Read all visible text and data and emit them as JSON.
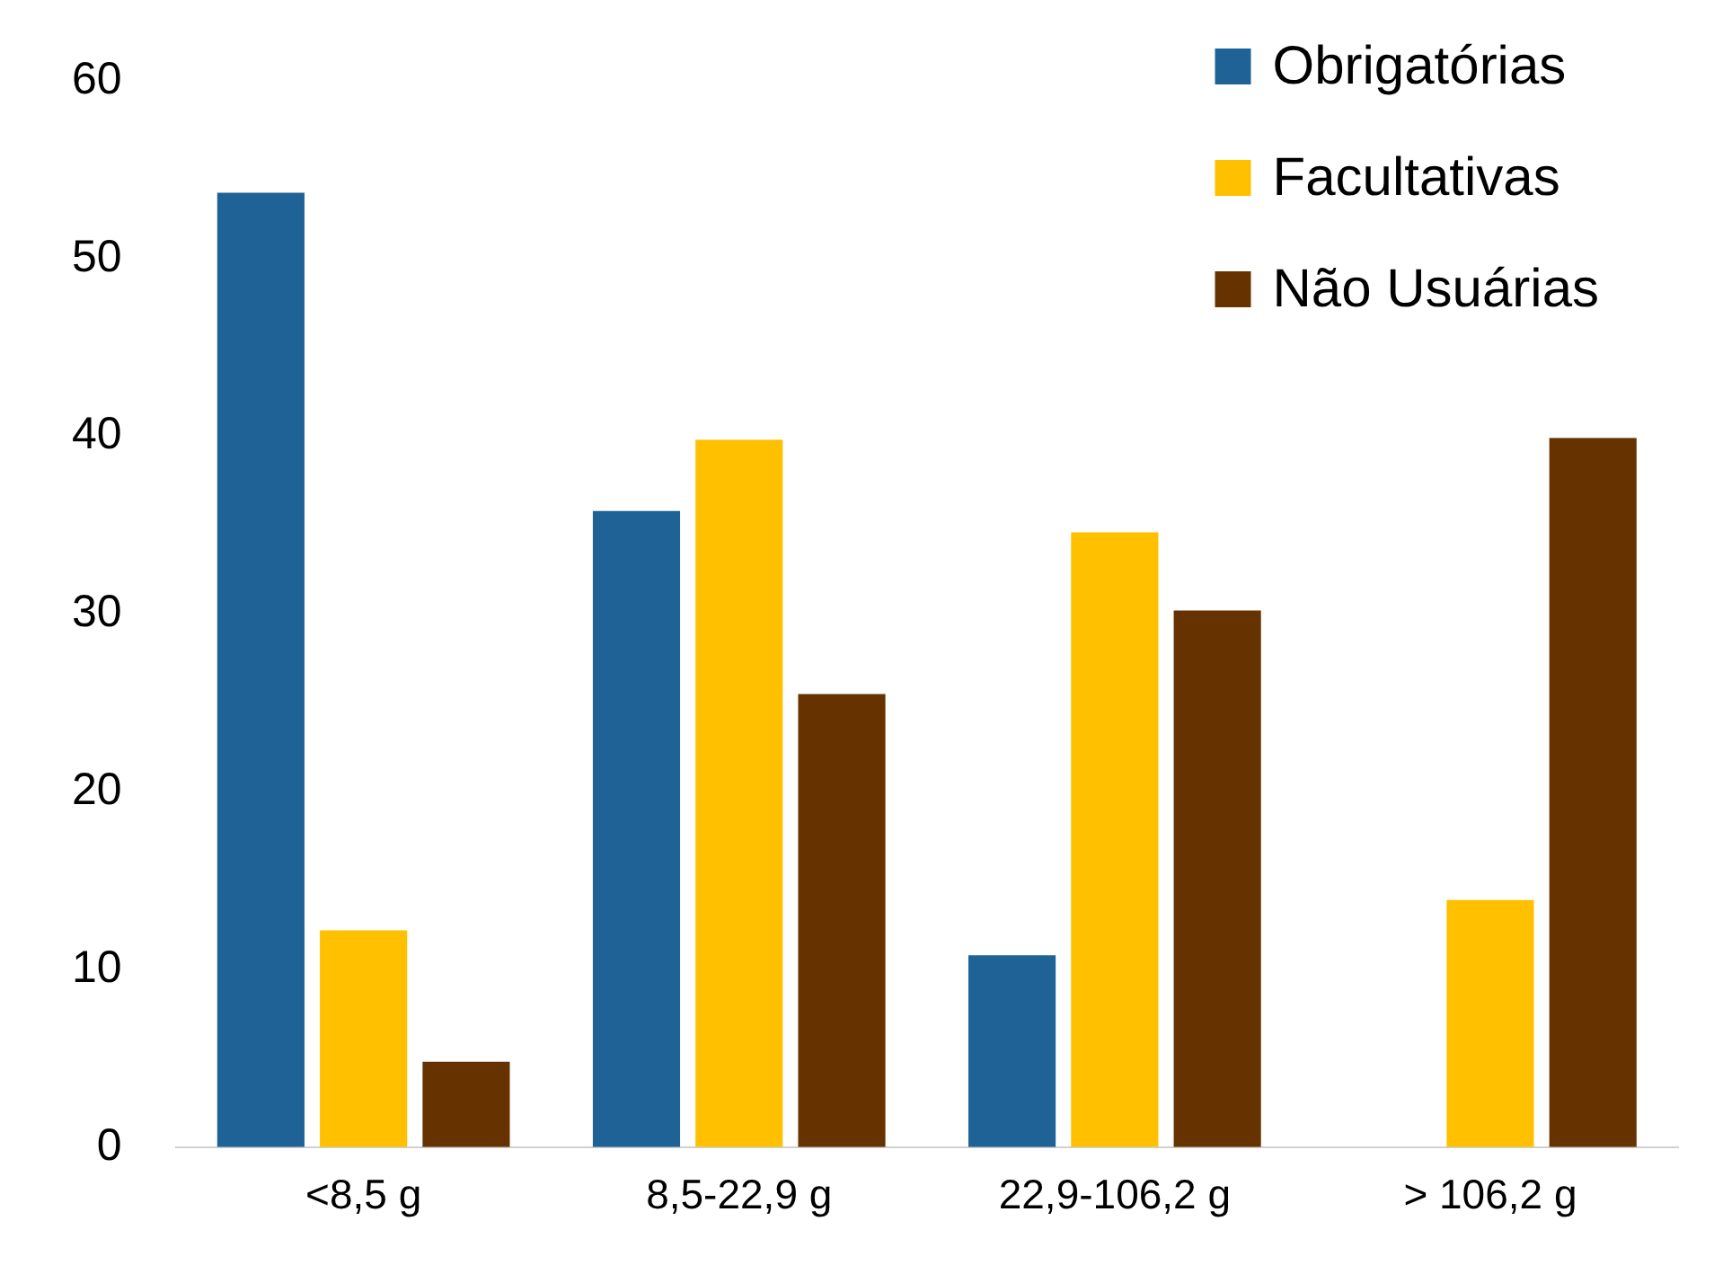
{
  "chart_data": {
    "type": "bar",
    "categories": [
      "<8,5 g",
      "8,5-22,9 g",
      "22,9-106,2 g",
      "> 106,2 g"
    ],
    "series": [
      {
        "name": "Obrigatórias",
        "color": "#1f6396",
        "values": [
          53.7,
          35.8,
          10.8,
          0
        ]
      },
      {
        "name": "Facultativas",
        "color": "#ffc000",
        "values": [
          12.2,
          39.8,
          34.6,
          13.9
        ]
      },
      {
        "name": "Não Usuárias",
        "color": "#663300",
        "values": [
          4.8,
          25.5,
          30.2,
          39.9
        ]
      }
    ],
    "ylim": [
      0,
      60
    ],
    "yticks": [
      0,
      10,
      20,
      30,
      40,
      50,
      60
    ],
    "grid": false,
    "legend": "top right"
  }
}
